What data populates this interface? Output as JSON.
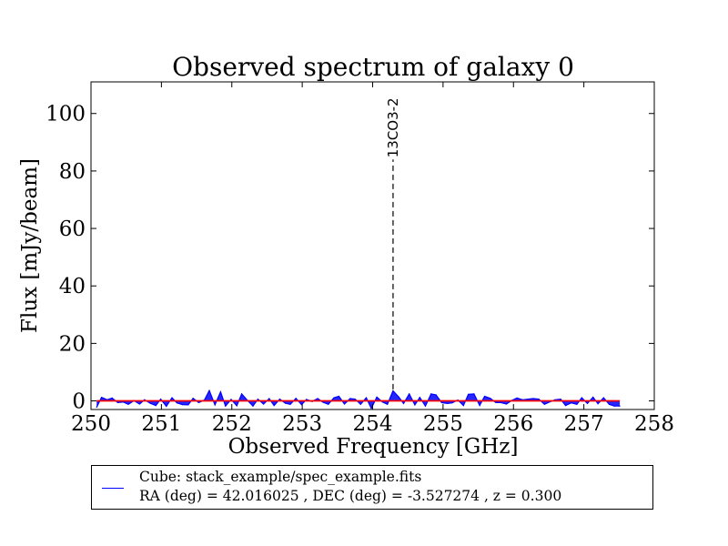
{
  "chart_data": {
    "type": "area",
    "title": "Observed spectrum of galaxy 0",
    "xlabel": "Observed Frequency [GHz]",
    "ylabel": "Flux [mJy/beam]",
    "xlim": [
      250,
      258
    ],
    "ylim": [
      -3,
      111
    ],
    "xticks": [
      250,
      251,
      252,
      253,
      254,
      255,
      256,
      257,
      258
    ],
    "yticks": [
      0,
      20,
      40,
      60,
      80,
      100
    ],
    "grid": false,
    "legend_position": "below",
    "series": [
      {
        "name": "Cube: stack_example/spec_example.fits",
        "color": "#0000ff",
        "fill": "#0000ff",
        "x": [
          250.08,
          250.15,
          250.23,
          250.3,
          250.38,
          250.46,
          250.53,
          250.61,
          250.69,
          250.76,
          250.84,
          250.92,
          250.99,
          251.07,
          251.15,
          251.22,
          251.3,
          251.38,
          251.45,
          251.53,
          251.61,
          251.68,
          251.76,
          251.84,
          251.91,
          251.99,
          252.07,
          252.14,
          252.22,
          252.3,
          252.37,
          252.45,
          252.53,
          252.6,
          252.68,
          252.76,
          252.83,
          252.91,
          252.99,
          253.06,
          253.14,
          253.22,
          253.29,
          253.37,
          253.45,
          253.52,
          253.6,
          253.68,
          253.75,
          253.83,
          253.91,
          253.98,
          254.06,
          254.14,
          254.21,
          254.29,
          254.37,
          254.44,
          254.52,
          254.6,
          254.67,
          254.75,
          254.83,
          254.9,
          254.98,
          255.06,
          255.13,
          255.21,
          255.29,
          255.36,
          255.44,
          255.52,
          255.59,
          255.67,
          255.75,
          255.82,
          255.9,
          255.98,
          256.05,
          256.13,
          256.21,
          256.28,
          256.36,
          256.44,
          256.51,
          256.59,
          256.67,
          256.74,
          256.82,
          256.9,
          256.97,
          257.05,
          257.13,
          257.2,
          257.28,
          257.36,
          257.43,
          257.51
        ],
        "y": [
          -2.2,
          1.2,
          0.4,
          1.0,
          -0.6,
          -0.4,
          -1.2,
          0.1,
          -1.1,
          0.4,
          -0.8,
          -1.6,
          0.6,
          -1.9,
          1.1,
          -0.7,
          -1.3,
          -1.4,
          0.9,
          -0.6,
          0.3,
          3.6,
          -1.4,
          3.1,
          -1.8,
          0.5,
          -1.7,
          2.4,
          0.2,
          -1.8,
          0.6,
          -1.1,
          0.8,
          -1.6,
          0.6,
          -0.8,
          -1.2,
          0.9,
          -1.3,
          0.5,
          -0.2,
          0.8,
          -0.4,
          -1.2,
          1.1,
          1.6,
          -1.1,
          0.8,
          0.6,
          -1.2,
          1.1,
          -2.6,
          1.3,
          -0.4,
          -1.2,
          3.5,
          1.4,
          -0.9,
          2.4,
          -1.4,
          1.2,
          -1.8,
          2.4,
          2.1,
          -0.6,
          -0.9,
          -0.7,
          0.3,
          -1.6,
          2.3,
          2.4,
          -1.6,
          1.6,
          0.9,
          -0.6,
          -0.6,
          -1.1,
          0.2,
          1.0,
          0.4,
          0.6,
          0.8,
          0.6,
          -1.2,
          -0.4,
          0.4,
          0.6,
          -1.6,
          -0.7,
          -1.2,
          1.1,
          -0.9,
          1.3,
          -1.0,
          1.1,
          -1.2,
          -1.8,
          -1.8
        ]
      },
      {
        "name": "",
        "color": "#ff0000",
        "x": [
          250.08,
          257.51
        ],
        "y": [
          0,
          0
        ]
      }
    ],
    "annotations": [
      {
        "label": "13CO3-2",
        "x": 254.29,
        "y_from": 4,
        "y_to": 84,
        "style": "dashed"
      }
    ]
  },
  "legend": {
    "line1": "Cube: stack_example/spec_example.fits",
    "line2": "RA (deg) = 42.016025 , DEC (deg) = -3.527274 , z = 0.300"
  }
}
